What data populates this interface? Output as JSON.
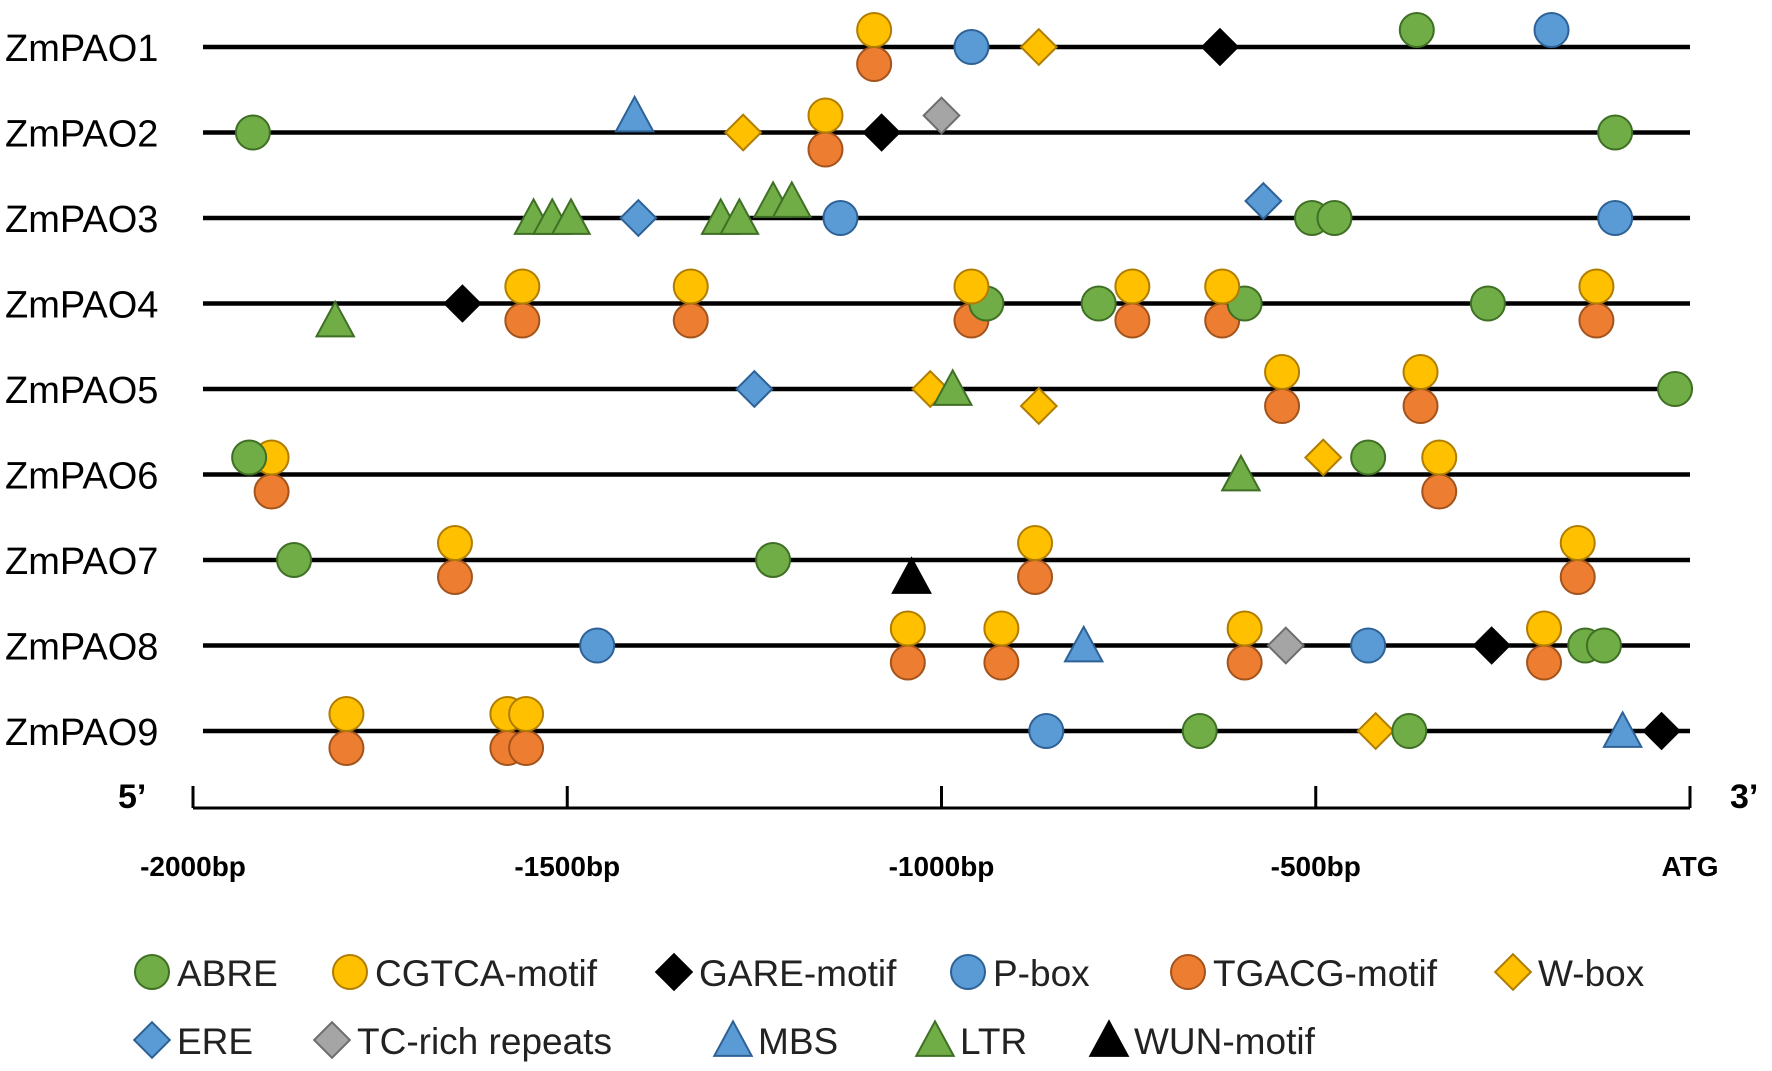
{
  "chart_data": {
    "type": "diagram",
    "title": "",
    "five_prime_label": "5’",
    "three_prime_label": "3’",
    "axis": {
      "range": [
        -2000,
        0
      ],
      "ticks": [
        {
          "value": -2000,
          "label": "-2000bp"
        },
        {
          "value": -1500,
          "label": "-1500bp"
        },
        {
          "value": -1000,
          "label": "-1000bp"
        },
        {
          "value": -500,
          "label": "-500bp"
        },
        {
          "value": 0,
          "label": "ATG"
        }
      ]
    },
    "element_types": {
      "ABRE": {
        "shape": "circle",
        "color": "#70ad47",
        "stroke": "#3f6f24"
      },
      "CGTCA-motif": {
        "shape": "circle",
        "color": "#ffc000",
        "stroke": "#b07d00"
      },
      "GARE-motif": {
        "shape": "diamond",
        "color": "#000000",
        "stroke": "#000000"
      },
      "P-box": {
        "shape": "circle",
        "color": "#5b9bd5",
        "stroke": "#2e6296"
      },
      "TGACG-motif": {
        "shape": "circle",
        "color": "#ed7d31",
        "stroke": "#a3531c"
      },
      "W-box": {
        "shape": "diamond",
        "color": "#ffc000",
        "stroke": "#b07d00"
      },
      "ERE": {
        "shape": "diamond",
        "color": "#5b9bd5",
        "stroke": "#2e6296"
      },
      "TC-rich repeats": {
        "shape": "diamond",
        "color": "#a5a5a5",
        "stroke": "#6e6e6e"
      },
      "MBS": {
        "shape": "triangle",
        "color": "#5b9bd5",
        "stroke": "#2e6296"
      },
      "LTR": {
        "shape": "triangle",
        "color": "#70ad47",
        "stroke": "#3f6f24"
      },
      "WUN-motif": {
        "shape": "triangle",
        "color": "#000000",
        "stroke": "#000000"
      }
    },
    "genes": [
      {
        "name": "ZmPAO1",
        "elements": [
          {
            "type": "CGTCA-motif",
            "pos": -1090,
            "strand": "+"
          },
          {
            "type": "TGACG-motif",
            "pos": -1090,
            "strand": "-"
          },
          {
            "type": "P-box",
            "pos": -960,
            "strand": "0"
          },
          {
            "type": "W-box",
            "pos": -870,
            "strand": "0"
          },
          {
            "type": "GARE-motif",
            "pos": -628,
            "strand": "0"
          },
          {
            "type": "ABRE",
            "pos": -365,
            "strand": "+"
          },
          {
            "type": "P-box",
            "pos": -185,
            "strand": "+"
          }
        ]
      },
      {
        "name": "ZmPAO2",
        "elements": [
          {
            "type": "ABRE",
            "pos": -1920,
            "strand": "0"
          },
          {
            "type": "MBS",
            "pos": -1410,
            "strand": "+"
          },
          {
            "type": "W-box",
            "pos": -1265,
            "strand": "0"
          },
          {
            "type": "CGTCA-motif",
            "pos": -1155,
            "strand": "+"
          },
          {
            "type": "TGACG-motif",
            "pos": -1155,
            "strand": "-"
          },
          {
            "type": "GARE-motif",
            "pos": -1080,
            "strand": "0"
          },
          {
            "type": "TC-rich repeats",
            "pos": -1000,
            "strand": "+"
          },
          {
            "type": "ABRE",
            "pos": -100,
            "strand": "0"
          }
        ]
      },
      {
        "name": "ZmPAO3",
        "elements": [
          {
            "type": "LTR",
            "pos": -1545,
            "strand": "0"
          },
          {
            "type": "LTR",
            "pos": -1520,
            "strand": "0"
          },
          {
            "type": "LTR",
            "pos": -1495,
            "strand": "0"
          },
          {
            "type": "ERE",
            "pos": -1405,
            "strand": "0"
          },
          {
            "type": "LTR",
            "pos": -1295,
            "strand": "0"
          },
          {
            "type": "LTR",
            "pos": -1270,
            "strand": "0"
          },
          {
            "type": "LTR",
            "pos": -1225,
            "strand": "+"
          },
          {
            "type": "LTR",
            "pos": -1200,
            "strand": "+"
          },
          {
            "type": "P-box",
            "pos": -1135,
            "strand": "0"
          },
          {
            "type": "ERE",
            "pos": -570,
            "strand": "+"
          },
          {
            "type": "ABRE",
            "pos": -505,
            "strand": "0"
          },
          {
            "type": "ABRE",
            "pos": -475,
            "strand": "0"
          },
          {
            "type": "P-box",
            "pos": -100,
            "strand": "0"
          }
        ]
      },
      {
        "name": "ZmPAO4",
        "elements": [
          {
            "type": "LTR",
            "pos": -1810,
            "strand": "-"
          },
          {
            "type": "GARE-motif",
            "pos": -1640,
            "strand": "0"
          },
          {
            "type": "CGTCA-motif",
            "pos": -1560,
            "strand": "+"
          },
          {
            "type": "TGACG-motif",
            "pos": -1560,
            "strand": "-"
          },
          {
            "type": "CGTCA-motif",
            "pos": -1335,
            "strand": "+"
          },
          {
            "type": "TGACG-motif",
            "pos": -1335,
            "strand": "-"
          },
          {
            "type": "ABRE",
            "pos": -940,
            "strand": "0"
          },
          {
            "type": "CGTCA-motif",
            "pos": -960,
            "strand": "+"
          },
          {
            "type": "TGACG-motif",
            "pos": -960,
            "strand": "-"
          },
          {
            "type": "ABRE",
            "pos": -790,
            "strand": "0"
          },
          {
            "type": "CGTCA-motif",
            "pos": -745,
            "strand": "+"
          },
          {
            "type": "TGACG-motif",
            "pos": -745,
            "strand": "-"
          },
          {
            "type": "ABRE",
            "pos": -595,
            "strand": "0"
          },
          {
            "type": "CGTCA-motif",
            "pos": -625,
            "strand": "+"
          },
          {
            "type": "TGACG-motif",
            "pos": -625,
            "strand": "-"
          },
          {
            "type": "ABRE",
            "pos": -270,
            "strand": "0"
          },
          {
            "type": "CGTCA-motif",
            "pos": -125,
            "strand": "+"
          },
          {
            "type": "TGACG-motif",
            "pos": -125,
            "strand": "-"
          }
        ]
      },
      {
        "name": "ZmPAO5",
        "elements": [
          {
            "type": "ERE",
            "pos": -1250,
            "strand": "0"
          },
          {
            "type": "W-box",
            "pos": -1015,
            "strand": "0"
          },
          {
            "type": "LTR",
            "pos": -985,
            "strand": "0"
          },
          {
            "type": "W-box",
            "pos": -870,
            "strand": "-"
          },
          {
            "type": "CGTCA-motif",
            "pos": -545,
            "strand": "+"
          },
          {
            "type": "TGACG-motif",
            "pos": -545,
            "strand": "-"
          },
          {
            "type": "CGTCA-motif",
            "pos": -360,
            "strand": "+"
          },
          {
            "type": "TGACG-motif",
            "pos": -360,
            "strand": "-"
          },
          {
            "type": "ABRE",
            "pos": -20,
            "strand": "0"
          }
        ]
      },
      {
        "name": "ZmPAO6",
        "elements": [
          {
            "type": "CGTCA-motif",
            "pos": -1895,
            "strand": "+"
          },
          {
            "type": "TGACG-motif",
            "pos": -1895,
            "strand": "-"
          },
          {
            "type": "ABRE",
            "pos": -1925,
            "strand": "+"
          },
          {
            "type": "LTR",
            "pos": -600,
            "strand": "0"
          },
          {
            "type": "W-box",
            "pos": -490,
            "strand": "+"
          },
          {
            "type": "ABRE",
            "pos": -430,
            "strand": "+"
          },
          {
            "type": "CGTCA-motif",
            "pos": -335,
            "strand": "+"
          },
          {
            "type": "TGACG-motif",
            "pos": -335,
            "strand": "-"
          }
        ]
      },
      {
        "name": "ZmPAO7",
        "elements": [
          {
            "type": "ABRE",
            "pos": -1865,
            "strand": "0"
          },
          {
            "type": "CGTCA-motif",
            "pos": -1650,
            "strand": "+"
          },
          {
            "type": "TGACG-motif",
            "pos": -1650,
            "strand": "-"
          },
          {
            "type": "ABRE",
            "pos": -1225,
            "strand": "0"
          },
          {
            "type": "WUN-motif",
            "pos": -1040,
            "strand": "-"
          },
          {
            "type": "CGTCA-motif",
            "pos": -875,
            "strand": "+"
          },
          {
            "type": "TGACG-motif",
            "pos": -875,
            "strand": "-"
          },
          {
            "type": "CGTCA-motif",
            "pos": -150,
            "strand": "+"
          },
          {
            "type": "TGACG-motif",
            "pos": -150,
            "strand": "-"
          }
        ]
      },
      {
        "name": "ZmPAO8",
        "elements": [
          {
            "type": "P-box",
            "pos": -1460,
            "strand": "0"
          },
          {
            "type": "CGTCA-motif",
            "pos": -1045,
            "strand": "+"
          },
          {
            "type": "TGACG-motif",
            "pos": -1045,
            "strand": "-"
          },
          {
            "type": "CGTCA-motif",
            "pos": -920,
            "strand": "+"
          },
          {
            "type": "TGACG-motif",
            "pos": -920,
            "strand": "-"
          },
          {
            "type": "MBS",
            "pos": -810,
            "strand": "0"
          },
          {
            "type": "CGTCA-motif",
            "pos": -595,
            "strand": "+"
          },
          {
            "type": "TGACG-motif",
            "pos": -595,
            "strand": "-"
          },
          {
            "type": "TC-rich repeats",
            "pos": -540,
            "strand": "0"
          },
          {
            "type": "P-box",
            "pos": -430,
            "strand": "0"
          },
          {
            "type": "GARE-motif",
            "pos": -265,
            "strand": "0"
          },
          {
            "type": "CGTCA-motif",
            "pos": -195,
            "strand": "+"
          },
          {
            "type": "TGACG-motif",
            "pos": -195,
            "strand": "-"
          },
          {
            "type": "ABRE",
            "pos": -140,
            "strand": "0"
          },
          {
            "type": "ABRE",
            "pos": -115,
            "strand": "0"
          }
        ]
      },
      {
        "name": "ZmPAO9",
        "elements": [
          {
            "type": "CGTCA-motif",
            "pos": -1795,
            "strand": "+"
          },
          {
            "type": "TGACG-motif",
            "pos": -1795,
            "strand": "-"
          },
          {
            "type": "CGTCA-motif",
            "pos": -1580,
            "strand": "+"
          },
          {
            "type": "TGACG-motif",
            "pos": -1580,
            "strand": "-"
          },
          {
            "type": "CGTCA-motif",
            "pos": -1555,
            "strand": "+"
          },
          {
            "type": "TGACG-motif",
            "pos": -1555,
            "strand": "-"
          },
          {
            "type": "P-box",
            "pos": -860,
            "strand": "0"
          },
          {
            "type": "ABRE",
            "pos": -655,
            "strand": "0"
          },
          {
            "type": "W-box",
            "pos": -420,
            "strand": "0"
          },
          {
            "type": "ABRE",
            "pos": -375,
            "strand": "0"
          },
          {
            "type": "MBS",
            "pos": -90,
            "strand": "0"
          },
          {
            "type": "GARE-motif",
            "pos": -38,
            "strand": "0"
          }
        ]
      }
    ],
    "legend": [
      [
        "ABRE",
        "CGTCA-motif",
        "GARE-motif",
        "P-box",
        "TGACG-motif",
        "W-box"
      ],
      [
        "ERE",
        "TC-rich repeats",
        "MBS",
        "LTR",
        "WUN-motif"
      ]
    ]
  }
}
